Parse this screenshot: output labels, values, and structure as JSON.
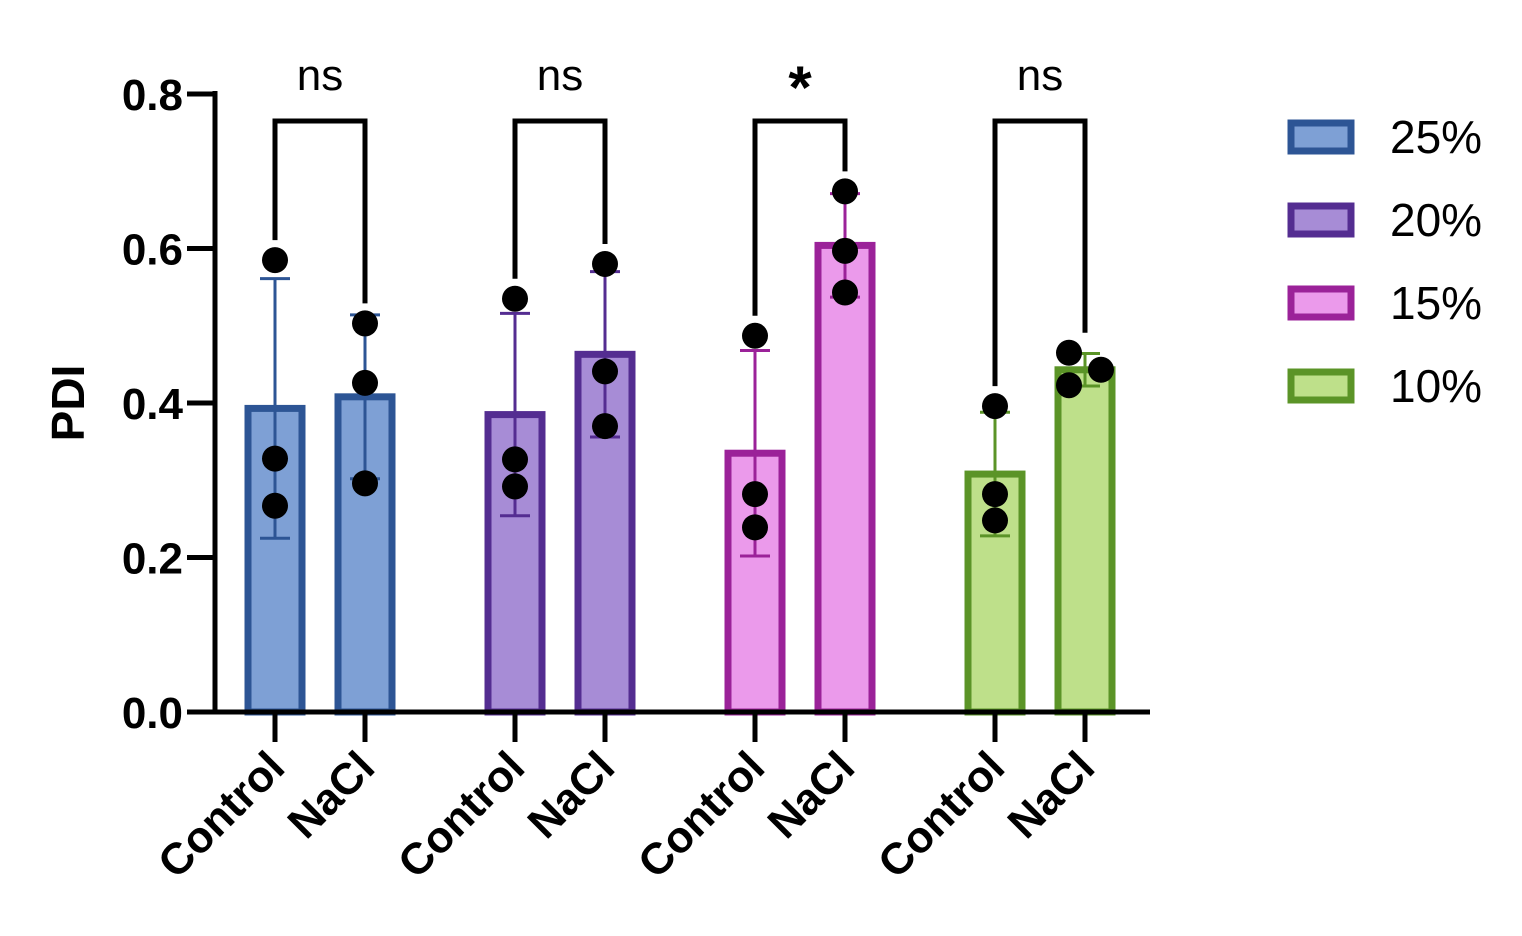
{
  "chart_data": {
    "type": "bar",
    "ylabel": "PDI",
    "xlabel": "",
    "ylim": [
      0,
      0.8
    ],
    "yticks": [
      "0.0",
      "0.2",
      "0.4",
      "0.6",
      "0.8"
    ],
    "legend_position": "right",
    "groups": [
      {
        "name": "25%",
        "fill": "#7ea0d5",
        "stroke": "#2d5595",
        "bars": [
          {
            "label": "Control",
            "mean": 0.393,
            "sd": 0.168,
            "points": [
              0.585,
              0.328,
              0.267
            ]
          },
          {
            "label": "NaCl",
            "mean": 0.408,
            "sd": 0.106,
            "points": [
              0.503,
              0.426,
              0.296
            ]
          }
        ],
        "significance": "ns"
      },
      {
        "name": "20%",
        "fill": "#a78cd6",
        "stroke": "#542d91",
        "bars": [
          {
            "label": "Control",
            "mean": 0.385,
            "sd": 0.131,
            "points": [
              0.535,
              0.327,
              0.292
            ]
          },
          {
            "label": "NaCl",
            "mean": 0.463,
            "sd": 0.107,
            "points": [
              0.58,
              0.441,
              0.37
            ]
          }
        ],
        "significance": "ns"
      },
      {
        "name": "15%",
        "fill": "#eb9aeb",
        "stroke": "#9b2299",
        "bars": [
          {
            "label": "Control",
            "mean": 0.335,
            "sd": 0.133,
            "points": [
              0.487,
              0.282,
              0.239
            ]
          },
          {
            "label": "NaCl",
            "mean": 0.604,
            "sd": 0.067,
            "points": [
              0.674,
              0.597,
              0.543
            ]
          }
        ],
        "significance": "*"
      },
      {
        "name": "10%",
        "fill": "#bee08a",
        "stroke": "#5b9427",
        "bars": [
          {
            "label": "Control",
            "mean": 0.308,
            "sd": 0.08,
            "points": [
              0.396,
              0.282,
              0.248
            ]
          },
          {
            "label": "NaCl",
            "mean": 0.443,
            "sd": 0.021,
            "points": [
              0.465,
              0.443,
              0.423
            ]
          }
        ],
        "significance": "ns"
      }
    ]
  }
}
